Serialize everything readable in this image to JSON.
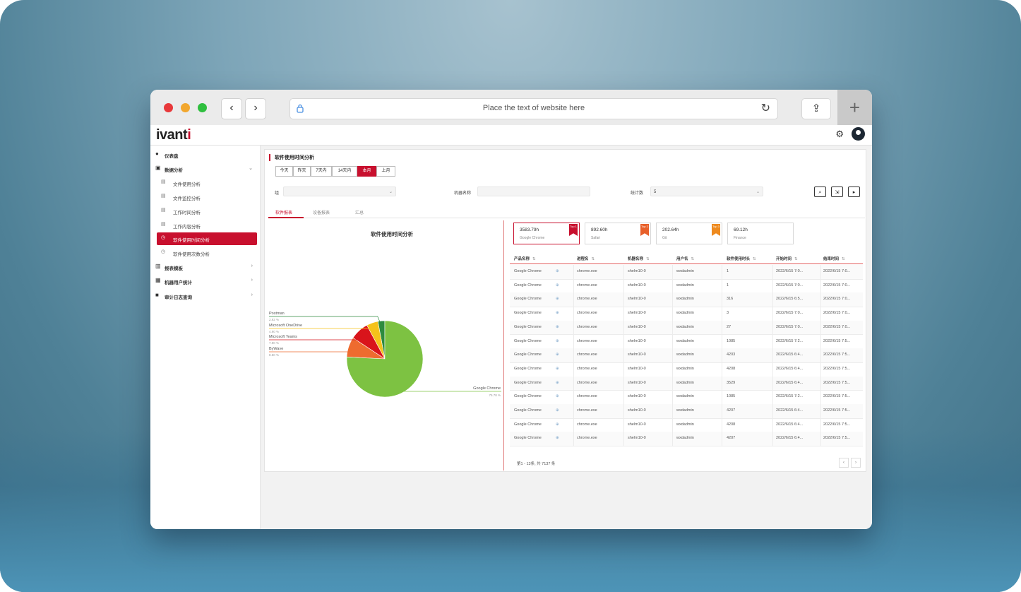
{
  "browser": {
    "url_placeholder": "Place the text of website here",
    "back_icon": "‹",
    "forward_icon": "›",
    "reload_icon": "↻",
    "share_icon": "⇪",
    "new_tab_icon": "+",
    "url_icon": "lock-icon"
  },
  "header": {
    "logo_main": "ivant",
    "logo_accent": "i",
    "gear_icon": "⚙"
  },
  "sidebar": {
    "items": [
      {
        "label": "仪表盘",
        "icon": "●"
      },
      {
        "label": "数据分析",
        "icon": "▣",
        "chevron": "⌄"
      },
      {
        "label": "文件使用分析",
        "icon": "▤"
      },
      {
        "label": "文件监控分析",
        "icon": "▤"
      },
      {
        "label": "工作时间分析",
        "icon": "▤"
      },
      {
        "label": "工作内容分析",
        "icon": "▤"
      },
      {
        "label": "软件使用时间分析",
        "icon": "◷"
      },
      {
        "label": "软件使用次数分析",
        "icon": "◷"
      },
      {
        "label": "报表模板",
        "icon": "▥",
        "chevron": "›"
      },
      {
        "label": "机器用户统计",
        "icon": "▦",
        "chevron": "›"
      },
      {
        "label": "审计日志查询",
        "icon": "■",
        "chevron": "›"
      }
    ]
  },
  "panel": {
    "title": "软件使用时间分析",
    "ranges": [
      "今天",
      "昨天",
      "7天内",
      "14天内",
      "本月",
      "上月"
    ],
    "active_range": "本月",
    "filters": {
      "group_label": "组",
      "machine_label": "机器名称",
      "topn_label": "统计数",
      "topn_value": "5"
    },
    "action_icons": [
      "⌕",
      "⇲",
      "▸"
    ],
    "tabs": [
      "软件报表",
      "设备报表",
      "汇总"
    ],
    "chart_title": "软件使用时间分析"
  },
  "cards": [
    {
      "value": "3583.79h",
      "sub": "Google Chrome",
      "flag": "Top 1",
      "flag_color": "#c8102e"
    },
    {
      "value": "892.60h",
      "sub": "Safari",
      "flag": "Top 2",
      "flag_color": "#e8602a"
    },
    {
      "value": "202.64h",
      "sub": "Git",
      "flag": "Top 3",
      "flag_color": "#ee8a1e"
    },
    {
      "value": "69.12h",
      "sub": "Finance",
      "flag": "",
      "flag_color": ""
    }
  ],
  "table": {
    "headers": [
      "产品名称",
      "进程名",
      "机器名称",
      "用户名",
      "软件使用时长",
      "开始时间",
      "结束时间"
    ],
    "rows": [
      [
        "Google Chrome",
        "chrome.exe",
        "shelm10-0",
        "wxdadmin",
        "1",
        "2022/6/15 7:0...",
        "2022/6/15 7:0..."
      ],
      [
        "Google Chrome",
        "chrome.exe",
        "shelm10-0",
        "wxdadmin",
        "1",
        "2022/6/15 7:0...",
        "2022/6/15 7:0..."
      ],
      [
        "Google Chrome",
        "chrome.exe",
        "shelm10-0",
        "wxdadmin",
        "316",
        "2022/6/15 6:5...",
        "2022/6/15 7:0..."
      ],
      [
        "Google Chrome",
        "chrome.exe",
        "shelm10-0",
        "wxdadmin",
        "3",
        "2022/6/15 7:0...",
        "2022/6/15 7:0..."
      ],
      [
        "Google Chrome",
        "chrome.exe",
        "shelm10-0",
        "wxdadmin",
        "27",
        "2022/6/15 7:0...",
        "2022/6/15 7:0..."
      ],
      [
        "Google Chrome",
        "chrome.exe",
        "shelm10-0",
        "wxdadmin",
        "1085",
        "2022/6/15 7:2...",
        "2022/6/15 7:5..."
      ],
      [
        "Google Chrome",
        "chrome.exe",
        "shelm10-0",
        "wxdadmin",
        "4203",
        "2022/6/15 6:4...",
        "2022/6/15 7:5..."
      ],
      [
        "Google Chrome",
        "chrome.exe",
        "shelm10-0",
        "wxdadmin",
        "4208",
        "2022/6/15 6:4...",
        "2022/6/15 7:5..."
      ],
      [
        "Google Chrome",
        "chrome.exe",
        "shelm10-0",
        "wxdadmin",
        "3529",
        "2022/6/15 6:4...",
        "2022/6/15 7:5..."
      ],
      [
        "Google Chrome",
        "chrome.exe",
        "shelm10-0",
        "wxdadmin",
        "1085",
        "2022/6/15 7:2...",
        "2022/6/15 7:5..."
      ],
      [
        "Google Chrome",
        "chrome.exe",
        "shelm10-0",
        "wxdadmin",
        "4207",
        "2022/6/15 6:4...",
        "2022/6/15 7:5..."
      ],
      [
        "Google Chrome",
        "chrome.exe",
        "shelm10-0",
        "wxdadmin",
        "4208",
        "2022/6/15 6:4...",
        "2022/6/15 7:5..."
      ],
      [
        "Google Chrome",
        "chrome.exe",
        "shelm10-0",
        "wxdadmin",
        "4207",
        "2022/6/15 6:4...",
        "2022/6/15 7:5..."
      ]
    ],
    "footer": "第1 - 13条, 共 7137 条",
    "prev_icon": "‹",
    "next_icon": "›"
  },
  "chart_data": {
    "type": "pie",
    "title": "软件使用时间分析",
    "slices": [
      {
        "name": "Google Chrome",
        "value": 75.78,
        "label": "75.78 %",
        "color": "#7dc242"
      },
      {
        "name": "ByWave",
        "value": 8.5,
        "label": "8.50 %",
        "color": "#ee6b2f"
      },
      {
        "name": "Microsoft Teams",
        "value": 7.9,
        "label": "7.90 %",
        "color": "#d9141b"
      },
      {
        "name": "Microsoft OneDrive",
        "value": 4.9,
        "label": "4.90 %",
        "color": "#f5c21b"
      },
      {
        "name": "Postman",
        "value": 2.92,
        "label": "2.92 %",
        "color": "#2e8b3e"
      }
    ]
  }
}
